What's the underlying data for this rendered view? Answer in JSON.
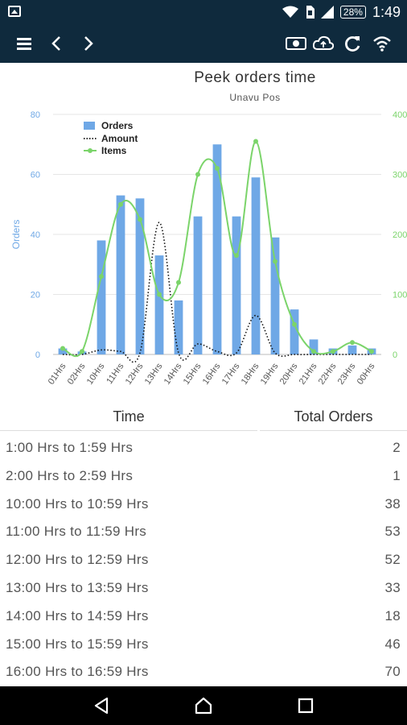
{
  "status_bar": {
    "time": "1:49",
    "battery": "28%",
    "icons": [
      "image-notification-icon",
      "wifi-icon",
      "sim-icon",
      "signal-icon",
      "battery-icon"
    ]
  },
  "toolbar": {
    "background": "#0f2a3d",
    "icons": [
      "menu-icon",
      "back-arrow-icon",
      "forward-arrow-icon",
      "cash-icon",
      "cloud-sync-icon",
      "refresh-icon",
      "wifi-icon"
    ]
  },
  "chart": {
    "title": "Peek orders time",
    "subtitle": "Unavu Pos"
  },
  "chart_data": {
    "type": "bar",
    "categories": [
      "01Hrs",
      "02Hrs",
      "10Hrs",
      "11Hrs",
      "12Hrs",
      "13Hrs",
      "14Hrs",
      "15Hrs",
      "16Hrs",
      "17Hrs",
      "18Hrs",
      "19Hrs",
      "20Hrs",
      "21Hrs",
      "22Hrs",
      "23Hrs",
      "00Hrs"
    ],
    "series": [
      {
        "name": "Orders",
        "type": "bar",
        "axis": "left",
        "color": "#6fa8e6",
        "values": [
          2,
          1,
          38,
          53,
          52,
          33,
          18,
          46,
          70,
          46,
          59,
          39,
          15,
          5,
          2,
          3,
          2
        ]
      },
      {
        "name": "Amount",
        "type": "line-dotted",
        "axis": "left",
        "color": "#111111",
        "values": [
          0,
          0,
          1.5,
          1,
          0.5,
          44,
          0.5,
          3.5,
          1,
          0.5,
          13,
          0.5,
          0,
          0,
          0,
          0,
          0
        ]
      },
      {
        "name": "Items",
        "type": "line",
        "axis": "right",
        "color": "#7bd46a",
        "values": [
          10,
          5,
          130,
          250,
          225,
          100,
          120,
          300,
          310,
          165,
          355,
          155,
          50,
          5,
          5,
          20,
          5
        ]
      }
    ],
    "ylabel": "Orders",
    "ylim": [
      0,
      80
    ],
    "y_ticks": [
      0,
      20,
      40,
      60,
      80
    ],
    "y2lim": [
      0,
      400
    ],
    "y2_ticks": [
      0,
      100,
      200,
      300,
      400
    ],
    "grid": true,
    "legend": "top-left",
    "colors": {
      "left_axis": "#6fa8e6",
      "right_axis": "#7bd46a"
    }
  },
  "table": {
    "col_time": "Time",
    "col_total": "Total Orders",
    "rows": [
      {
        "time": "1:00 Hrs to 1:59 Hrs",
        "total": "2"
      },
      {
        "time": "2:00 Hrs to 2:59 Hrs",
        "total": "1"
      },
      {
        "time": "10:00 Hrs to 10:59 Hrs",
        "total": "38"
      },
      {
        "time": "11:00 Hrs to 11:59 Hrs",
        "total": "53"
      },
      {
        "time": "12:00 Hrs to 12:59 Hrs",
        "total": "52"
      },
      {
        "time": "13:00 Hrs to 13:59 Hrs",
        "total": "33"
      },
      {
        "time": "14:00 Hrs to 14:59 Hrs",
        "total": "18"
      },
      {
        "time": "15:00 Hrs to 15:59 Hrs",
        "total": "46"
      },
      {
        "time": "16:00 Hrs to 16:59 Hrs",
        "total": "70"
      }
    ]
  },
  "nav_bar": {
    "icons": [
      "back-icon",
      "home-icon",
      "recents-icon"
    ]
  }
}
